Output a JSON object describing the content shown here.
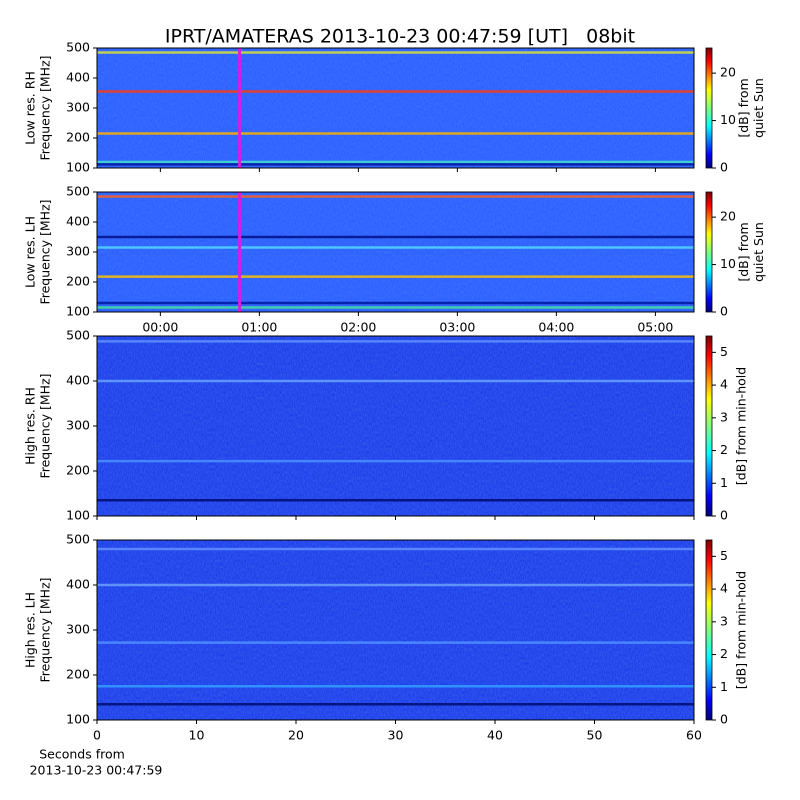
{
  "chart_data": [
    {
      "type": "heatmap",
      "title": "IPRT/AMATERAS 2013-10-23 00:47:59 [UT]   08bit",
      "ylabel": [
        "Low res. RH",
        "Frequency [MHz]"
      ],
      "ylim": [
        100,
        500
      ],
      "yticks": [
        100,
        200,
        300,
        400,
        500
      ],
      "xlim": [
        -0.64,
        5.39
      ],
      "xticks": [
        {
          "value": 0,
          "label": "00:00"
        },
        {
          "value": 1,
          "label": "01:00"
        },
        {
          "value": 2,
          "label": "02:00"
        },
        {
          "value": 3,
          "label": "03:00"
        },
        {
          "value": 4,
          "label": "04:00"
        },
        {
          "value": 5,
          "label": "05:00"
        }
      ],
      "show_xtick_labels": false,
      "background": "#2a5cff",
      "bands": [
        {
          "y": 485,
          "color": "#d6e040"
        },
        {
          "y": 355,
          "color": "#ff3a10"
        },
        {
          "y": 215,
          "color": "#ffb000"
        },
        {
          "y": 120,
          "color": "#40e0d0"
        },
        {
          "y": 112,
          "color": "#0018a0"
        }
      ],
      "highlight_x": 0.8,
      "highlight_color": "#d020e0",
      "colorbar": {
        "label": [
          "[dB] from",
          "quiet Sun"
        ],
        "lim": [
          0,
          25.3
        ],
        "ticks": [
          0,
          10,
          20
        ]
      }
    },
    {
      "type": "heatmap",
      "ylabel": [
        "Low res. LH",
        "Frequency [MHz]"
      ],
      "ylim": [
        100,
        500
      ],
      "yticks": [
        100,
        200,
        300,
        400,
        500
      ],
      "xlim": [
        -0.64,
        5.39
      ],
      "xticks": [
        {
          "value": 0,
          "label": "00:00"
        },
        {
          "value": 1,
          "label": "01:00"
        },
        {
          "value": 2,
          "label": "02:00"
        },
        {
          "value": 3,
          "label": "03:00"
        },
        {
          "value": 4,
          "label": "04:00"
        },
        {
          "value": 5,
          "label": "05:00"
        }
      ],
      "show_xtick_labels": true,
      "background": "#2a5cff",
      "bands": [
        {
          "y": 485,
          "color": "#ff6020"
        },
        {
          "y": 350,
          "color": "#00108a"
        },
        {
          "y": 315,
          "color": "#50d8ff"
        },
        {
          "y": 218,
          "color": "#ffc000"
        },
        {
          "y": 130,
          "color": "#0018a0"
        },
        {
          "y": 115,
          "color": "#40e0a0"
        }
      ],
      "highlight_x": 0.8,
      "highlight_color": "#d020e0",
      "colorbar": {
        "label": [
          "[dB] from",
          "quiet Sun"
        ],
        "lim": [
          0,
          25.3
        ],
        "ticks": [
          0,
          10,
          20
        ]
      }
    },
    {
      "type": "heatmap",
      "ylabel": [
        "High res. RH",
        "Frequency [MHz]"
      ],
      "ylim": [
        100,
        500
      ],
      "yticks": [
        100,
        200,
        300,
        400,
        500
      ],
      "xlim": [
        0,
        60
      ],
      "xticks": [
        0,
        10,
        20,
        30,
        40,
        50,
        60
      ],
      "show_xtick_labels": false,
      "background": "#1c3ae8",
      "bands": [
        {
          "y": 488,
          "color": "#6090ff"
        },
        {
          "y": 400,
          "color": "#6aa0ff"
        },
        {
          "y": 222,
          "color": "#4a90ff"
        },
        {
          "y": 135,
          "color": "#000c70"
        }
      ],
      "colorbar": {
        "label": [
          "[dB] from min-hold"
        ],
        "lim": [
          0,
          5.5
        ],
        "ticks": [
          0,
          1,
          2,
          3,
          4,
          5
        ]
      }
    },
    {
      "type": "heatmap",
      "ylabel": [
        "High res. LH",
        "Frequency [MHz]"
      ],
      "ylim": [
        100,
        500
      ],
      "yticks": [
        100,
        200,
        300,
        400,
        500
      ],
      "xlim": [
        0,
        60
      ],
      "xticks": [
        0,
        10,
        20,
        30,
        40,
        50,
        60
      ],
      "show_xtick_labels": true,
      "background": "#1c3ae8",
      "xlabel": [
        "Seconds from",
        "2013-10-23 00:47:59"
      ],
      "bands": [
        {
          "y": 480,
          "color": "#6090ff"
        },
        {
          "y": 400,
          "color": "#6aa0ff"
        },
        {
          "y": 272,
          "color": "#5090ff"
        },
        {
          "y": 175,
          "color": "#30a0ff"
        },
        {
          "y": 135,
          "color": "#000c70"
        }
      ],
      "colorbar": {
        "label": [
          "[dB] from min-hold"
        ],
        "lim": [
          0,
          5.5
        ],
        "ticks": [
          0,
          1,
          2,
          3,
          4,
          5
        ]
      }
    }
  ]
}
